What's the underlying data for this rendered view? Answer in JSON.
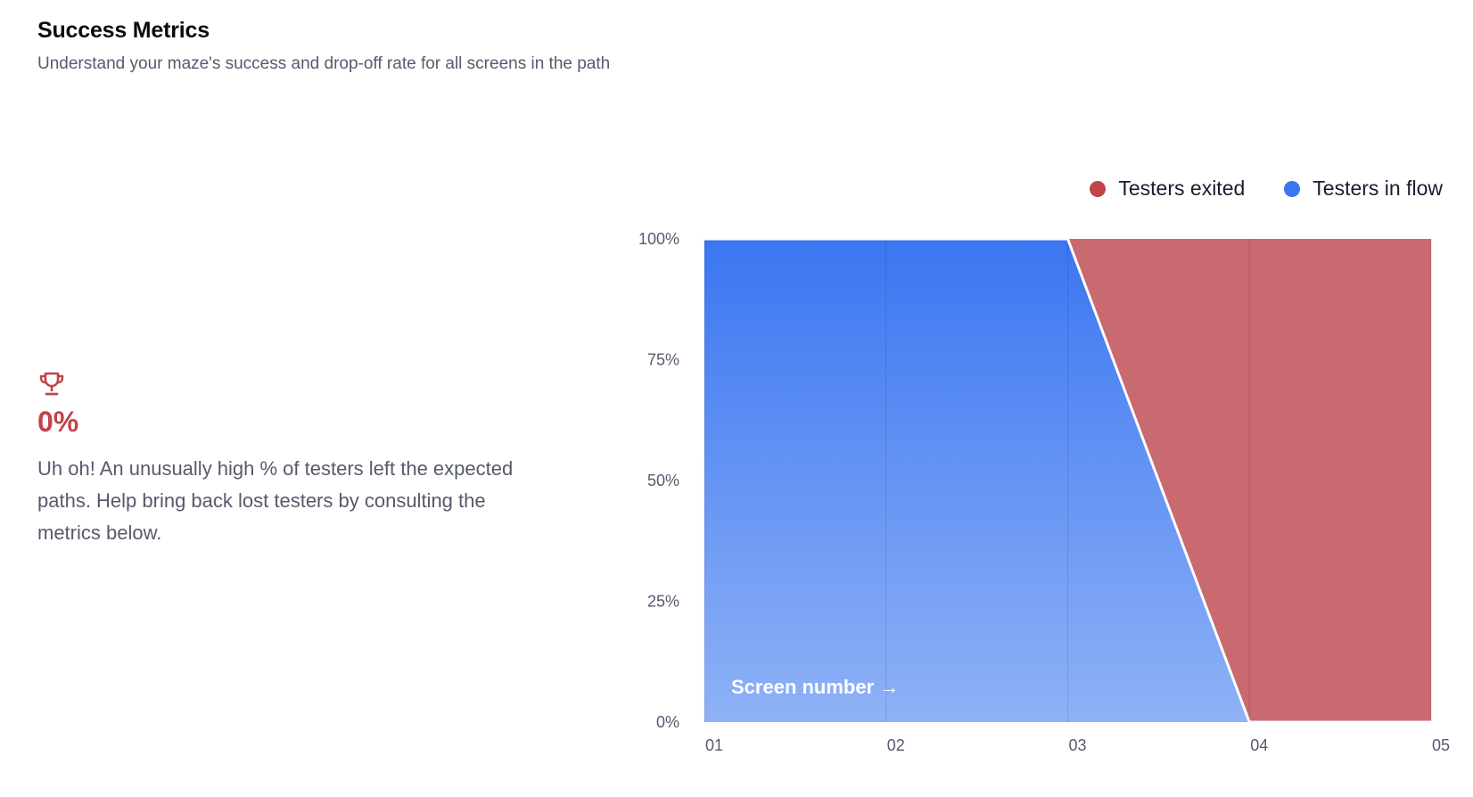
{
  "header": {
    "title": "Success Metrics",
    "subtitle": "Understand your maze's success and drop-off rate for all screens in the path"
  },
  "summary": {
    "icon": "trophy-icon",
    "rate": "0%",
    "message": "Uh oh! An unusually high % of testers left the expected paths. Help bring back lost testers by consulting the metrics below."
  },
  "colors": {
    "accent_red": "#c2434a",
    "exited": "#c86a70",
    "in_flow": "#3b76f1",
    "in_flow_light": "#8fb2f6"
  },
  "chart_data": {
    "type": "area",
    "x": [
      "01",
      "02",
      "03",
      "04",
      "05"
    ],
    "series": [
      {
        "name": "Testers in flow",
        "values": [
          100,
          100,
          100,
          0,
          0
        ]
      },
      {
        "name": "Testers exited",
        "values": [
          0,
          0,
          0,
          100,
          100
        ]
      }
    ],
    "y_ticks": [
      "0%",
      "25%",
      "50%",
      "75%",
      "100%"
    ],
    "ylim": [
      0,
      100
    ],
    "x_annotation": "Screen number →",
    "legend": [
      "Testers exited",
      "Testers in flow"
    ],
    "legend_position": "top-right",
    "grid": "vertical"
  }
}
